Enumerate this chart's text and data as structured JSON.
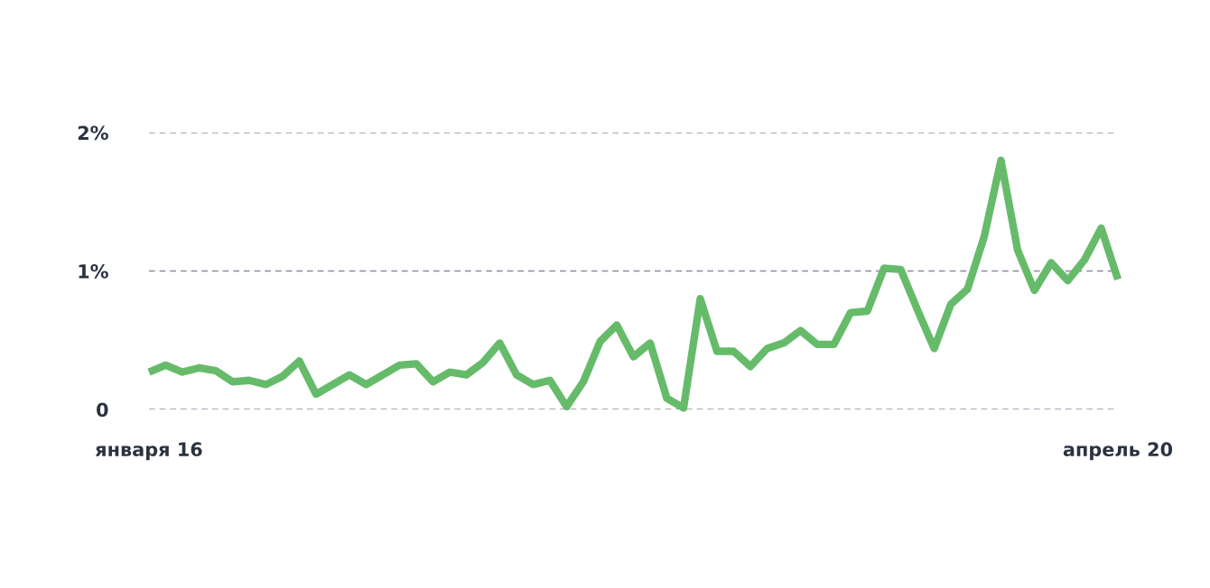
{
  "chart_data": {
    "type": "line",
    "categories": [
      "января 16",
      null,
      null,
      null,
      null,
      null,
      null,
      null,
      null,
      null,
      null,
      null,
      null,
      null,
      null,
      null,
      null,
      null,
      null,
      null,
      null,
      null,
      null,
      null,
      null,
      null,
      null,
      null,
      null,
      null,
      null,
      null,
      null,
      null,
      null,
      null,
      null,
      null,
      null,
      null,
      null,
      null,
      null,
      null,
      null,
      null,
      null,
      null,
      null,
      null,
      null,
      null,
      null,
      null,
      null,
      null,
      null,
      null,
      "апрель 20"
    ],
    "series": [
      {
        "color": "#66bb6a",
        "values": [
          0.27,
          0.32,
          0.27,
          0.3,
          0.28,
          0.2,
          0.21,
          0.18,
          0.24,
          0.35,
          0.11,
          0.18,
          0.25,
          0.18,
          0.25,
          0.32,
          0.33,
          0.2,
          0.27,
          0.25,
          0.34,
          0.48,
          0.25,
          0.18,
          0.21,
          0.02,
          0.2,
          0.49,
          0.61,
          0.38,
          0.48,
          0.08,
          0.01,
          0.8,
          0.42,
          0.42,
          0.31,
          0.44,
          0.48,
          0.57,
          0.47,
          0.47,
          0.7,
          0.71,
          1.02,
          1.01,
          0.72,
          0.44,
          0.76,
          0.87,
          1.25,
          1.8,
          1.15,
          0.86,
          1.06,
          0.93,
          1.08,
          1.31,
          0.94
        ]
      }
    ],
    "ylim": [
      0,
      2
    ],
    "yticks": [
      0,
      {
        "value": 1,
        "label": "1%"
      },
      {
        "value": 2,
        "label": "2%"
      }
    ],
    "grid": "y",
    "marker": "none",
    "line_style": "solid",
    "legend": false
  }
}
